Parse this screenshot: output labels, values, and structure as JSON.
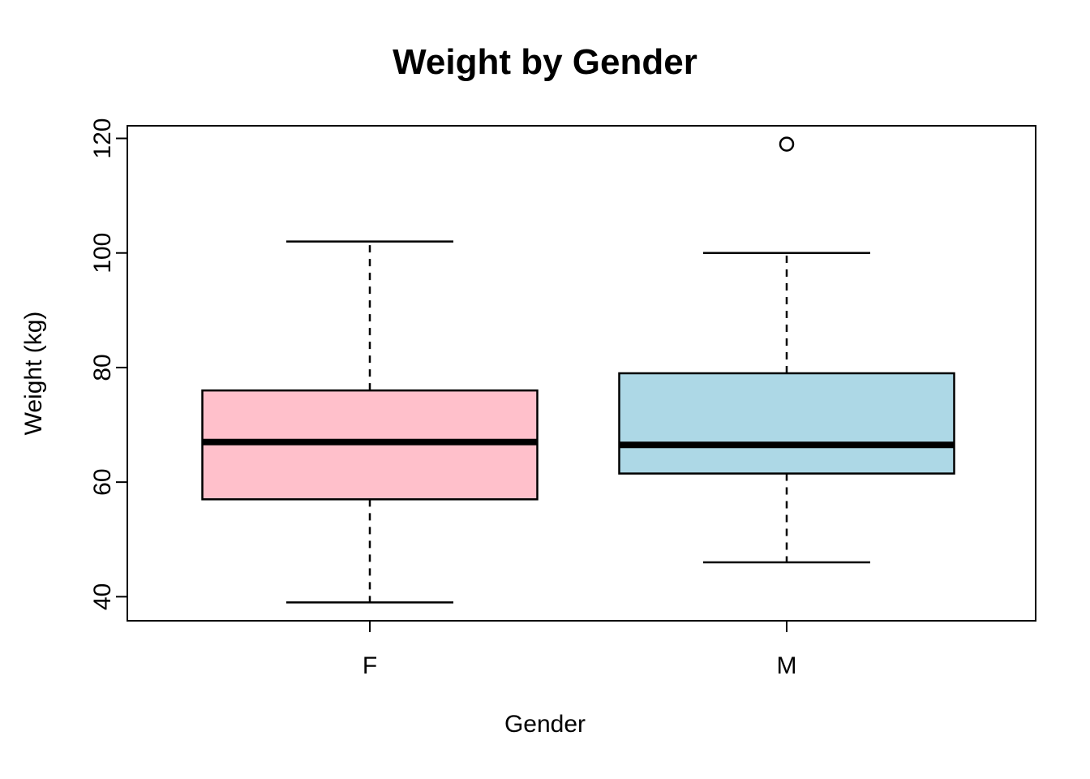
{
  "chart_data": {
    "type": "boxplot",
    "title": "Weight by Gender",
    "xlabel": "Gender",
    "ylabel": "Weight (kg)",
    "categories": [
      "F",
      "M"
    ],
    "y_ticks": [
      40,
      60,
      80,
      100,
      120
    ],
    "ylim": [
      35.8,
      122.2
    ],
    "grid": false,
    "legend": "none",
    "background_color": "#ffffff",
    "stroke_color": "#000000",
    "series": [
      {
        "name": "F",
        "fill": "#FFC0CB",
        "whisker_low": 39,
        "q1": 57,
        "median": 67,
        "q3": 76,
        "whisker_high": 102,
        "outliers": []
      },
      {
        "name": "M",
        "fill": "#ADD8E6",
        "whisker_low": 46,
        "q1": 61.5,
        "median": 66.5,
        "q3": 79,
        "whisker_high": 100,
        "outliers": [
          119
        ]
      }
    ]
  }
}
